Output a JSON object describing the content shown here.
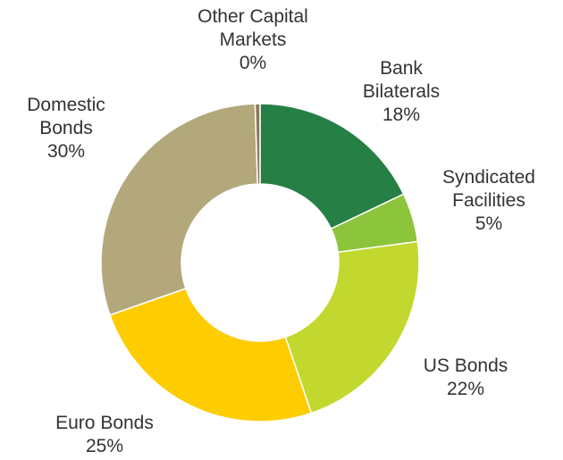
{
  "chart_data": {
    "type": "pie",
    "donut": true,
    "legend": "none",
    "slices": [
      {
        "name": "Bank Bilaterals",
        "label_lines": [
          "Bank",
          "Bilaterals"
        ],
        "value": 18,
        "display": "18%",
        "color": "#267F45"
      },
      {
        "name": "Syndicated Facilities",
        "label_lines": [
          "Syndicated",
          "Facilities"
        ],
        "value": 5,
        "display": "5%",
        "color": "#8CC43C"
      },
      {
        "name": "US Bonds",
        "label_lines": [
          "US Bonds"
        ],
        "value": 22,
        "display": "22%",
        "color": "#C2D82E"
      },
      {
        "name": "Euro Bonds",
        "label_lines": [
          "Euro Bonds"
        ],
        "value": 25,
        "display": "25%",
        "color": "#FDCC01"
      },
      {
        "name": "Domestic Bonds",
        "label_lines": [
          "Domestic",
          "Bonds"
        ],
        "value": 30,
        "display": "30%",
        "color": "#B3A87C"
      },
      {
        "name": "Other Capital Markets",
        "label_lines": [
          "Other Capital",
          "Markets"
        ],
        "value": 0.5,
        "display": "0%",
        "color": "#8B7A5A"
      }
    ]
  }
}
